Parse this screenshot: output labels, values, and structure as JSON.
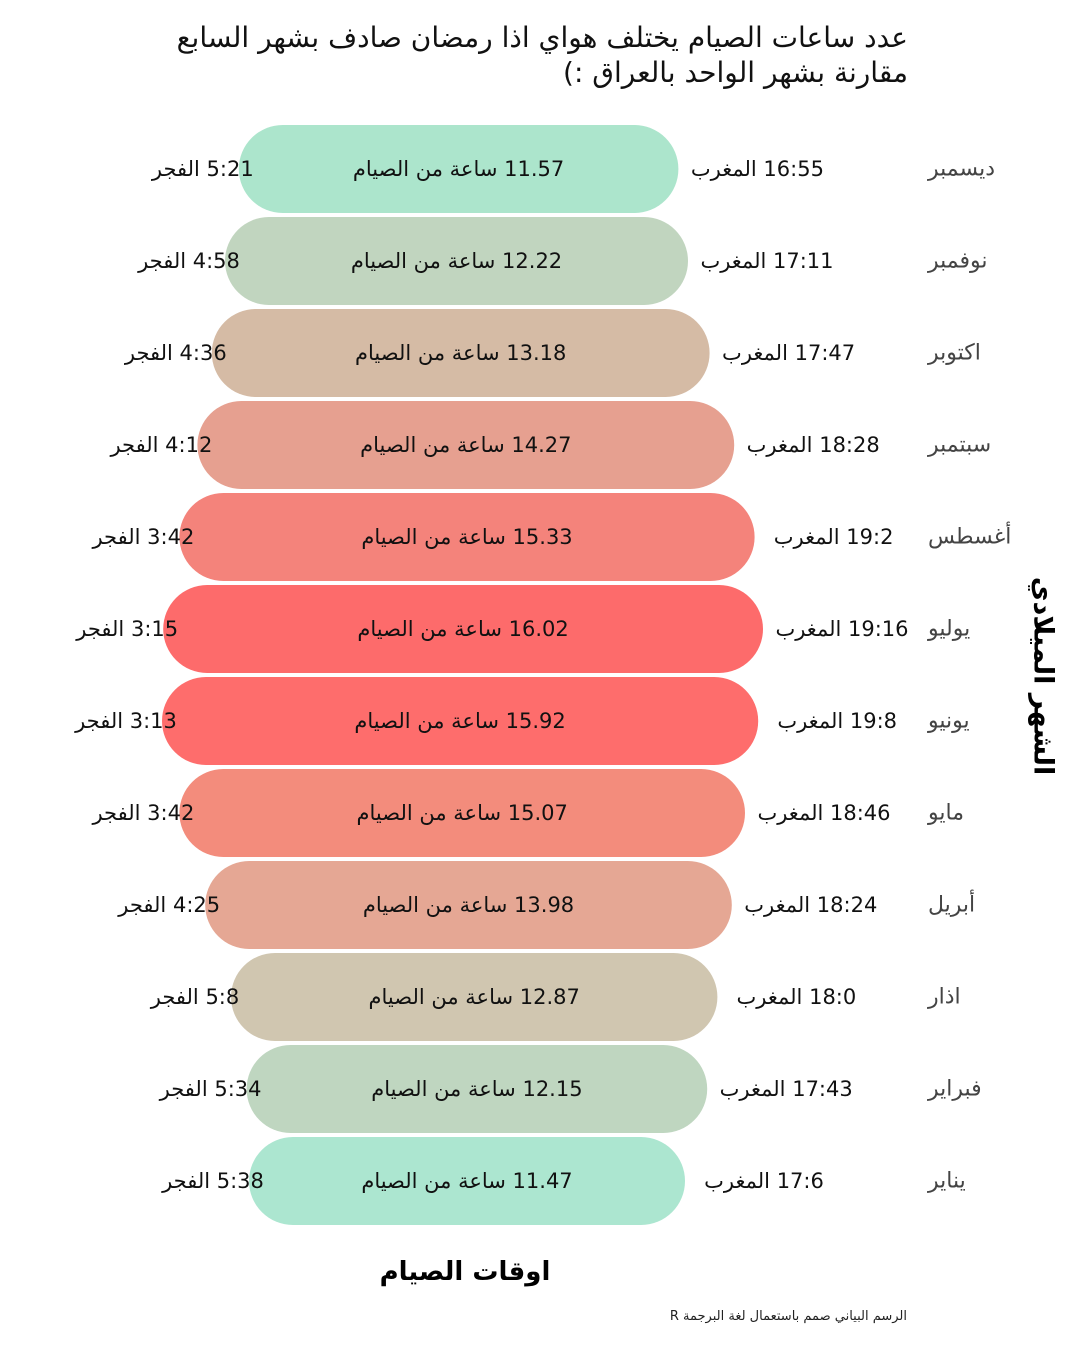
{
  "title": {
    "line1": "عدد ساعات الصيام يختلف هواي اذا رمضان صادف بشهر السابع",
    "line2": "مقارنة بشهر الواحد بالعراق :)"
  },
  "chart_data": {
    "type": "bar",
    "orientation": "horizontal-range",
    "title": "عدد ساعات الصيام يختلف هواي اذا رمضان صادف بشهر السابع مقارنة بشهر الواحد بالعراق :)",
    "xlabel": "اوقات الصيام",
    "ylabel": "الشهر الميلادي",
    "caption": "الرسم البياني صمم باستعمال لغة البرجمة R",
    "fajr_suffix": "الفجر",
    "maghrib_suffix": "المغرب",
    "hours_suffix": "ساعة من الصيام",
    "grid": false,
    "legend": "none",
    "rows": [
      {
        "month": "ديسمبر",
        "fajr": "5:21",
        "maghrib": "16:55",
        "hours": "11.57",
        "color": "#ace5cc"
      },
      {
        "month": "نوفمبر",
        "fajr": "4:58",
        "maghrib": "17:11",
        "hours": "12.22",
        "color": "#c1d5bf"
      },
      {
        "month": "اكتوبر",
        "fajr": "4:36",
        "maghrib": "17:47",
        "hours": "13.18",
        "color": "#d5bba5"
      },
      {
        "month": "سبتمبر",
        "fajr": "4:12",
        "maghrib": "18:28",
        "hours": "14.27",
        "color": "#e6a090"
      },
      {
        "month": "أغسطس",
        "fajr": "3:42",
        "maghrib": "19:2",
        "hours": "15.33",
        "color": "#f4837b"
      },
      {
        "month": "يوليو",
        "fajr": "3:15",
        "maghrib": "19:16",
        "hours": "16.02",
        "color": "#fd6b6b"
      },
      {
        "month": "يونيو",
        "fajr": "3:13",
        "maghrib": "19:8",
        "hours": "15.92",
        "color": "#fe6d6c"
      },
      {
        "month": "مايو",
        "fajr": "3:42",
        "maghrib": "18:46",
        "hours": "15.07",
        "color": "#f38c7c"
      },
      {
        "month": "أبريل",
        "fajr": "4:25",
        "maghrib": "18:24",
        "hours": "13.98",
        "color": "#e5a794"
      },
      {
        "month": "اذار",
        "fajr": "5:8",
        "maghrib": "18:0",
        "hours": "12.87",
        "color": "#d0c6b0"
      },
      {
        "month": "فبراير",
        "fajr": "5:34",
        "maghrib": "17:43",
        "hours": "12.15",
        "color": "#bfd6c0"
      },
      {
        "month": "يناير",
        "fajr": "5:38",
        "maghrib": "17:6",
        "hours": "11.47",
        "color": "#ace6d0"
      }
    ]
  }
}
